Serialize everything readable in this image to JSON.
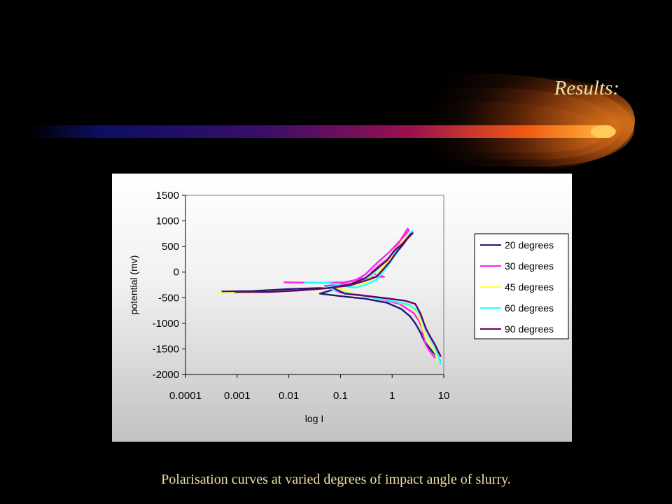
{
  "slide": {
    "title": "Results:",
    "caption": "Polarisation curves  at varied degrees of impact angle of slurry."
  },
  "chart_data": {
    "type": "line",
    "title": "",
    "xlabel": "log I",
    "ylabel": "potential (mv)",
    "x_scale": "log",
    "xlim": [
      0.0001,
      10
    ],
    "ylim": [
      -2000,
      1500
    ],
    "x_ticks": [
      "0.0001",
      "0.001",
      "0.01",
      "0.1",
      "1",
      "10"
    ],
    "y_ticks": [
      "1500",
      "1000",
      "500",
      "0",
      "-500",
      "-1000",
      "-1500",
      "-2000"
    ],
    "grid": false,
    "legend": "right",
    "series": [
      {
        "name": "20 degrees",
        "color": "#1a1a7a",
        "points": [
          [
            0.0005,
            -380
          ],
          [
            0.002,
            -370
          ],
          [
            0.01,
            -330
          ],
          [
            0.04,
            -310
          ],
          [
            0.08,
            -330
          ],
          [
            0.04,
            -420
          ],
          [
            0.1,
            -470
          ],
          [
            0.3,
            -520
          ],
          [
            0.8,
            -600
          ],
          [
            1.5,
            -720
          ],
          [
            2.2,
            -860
          ],
          [
            2.8,
            -1000
          ],
          [
            3.2,
            -1100
          ],
          [
            3.6,
            -1200
          ],
          [
            4.2,
            -1350
          ],
          [
            5.0,
            -1450
          ],
          [
            6.0,
            -1550
          ],
          [
            7.5,
            -1650
          ],
          [
            8.6,
            -1740
          ]
        ]
      },
      {
        "name": "30 degrees",
        "color": "#ff22ee",
        "points": [
          [
            0.008,
            -200
          ],
          [
            0.04,
            -210
          ],
          [
            0.12,
            -200
          ],
          [
            0.25,
            -130
          ],
          [
            0.4,
            -100
          ],
          [
            0.7,
            -90
          ],
          [
            0.5,
            -60
          ],
          [
            0.4,
            0
          ],
          [
            0.6,
            150
          ],
          [
            0.9,
            300
          ],
          [
            1.2,
            480
          ],
          [
            1.5,
            650
          ],
          [
            2.0,
            850
          ],
          [
            2.1,
            810
          ],
          [
            1.5,
            640
          ],
          [
            0.9,
            400
          ],
          [
            0.5,
            170
          ],
          [
            0.3,
            -50
          ],
          [
            0.2,
            -150
          ],
          [
            0.1,
            -240
          ],
          [
            0.05,
            -270
          ],
          [
            0.1,
            -400
          ],
          [
            0.25,
            -450
          ],
          [
            0.6,
            -530
          ],
          [
            1.4,
            -620
          ],
          [
            2.6,
            -800
          ],
          [
            3.3,
            -950
          ],
          [
            3.8,
            -1100
          ],
          [
            4.0,
            -1250
          ],
          [
            4.5,
            -1420
          ],
          [
            5.5,
            -1560
          ],
          [
            6.8,
            -1680
          ]
        ]
      },
      {
        "name": "45 degrees",
        "color": "#ffff44",
        "points": [
          [
            0.0004,
            -410
          ],
          [
            0.002,
            -400
          ],
          [
            0.01,
            -370
          ],
          [
            0.05,
            -330
          ],
          [
            0.15,
            -290
          ],
          [
            0.3,
            -200
          ],
          [
            0.5,
            -100
          ],
          [
            0.6,
            50
          ],
          [
            0.9,
            250
          ],
          [
            1.2,
            420
          ],
          [
            1.6,
            580
          ],
          [
            2.0,
            700
          ],
          [
            2.3,
            760
          ],
          [
            2.0,
            740
          ],
          [
            1.4,
            540
          ],
          [
            1.0,
            380
          ],
          [
            0.8,
            200
          ],
          [
            0.6,
            100
          ],
          [
            0.4,
            -80
          ],
          [
            0.2,
            -240
          ],
          [
            0.1,
            -320
          ],
          [
            0.2,
            -440
          ],
          [
            0.5,
            -510
          ],
          [
            1.2,
            -580
          ],
          [
            2.2,
            -660
          ],
          [
            3.0,
            -800
          ],
          [
            3.6,
            -980
          ],
          [
            4.0,
            -1150
          ],
          [
            4.8,
            -1320
          ],
          [
            5.8,
            -1450
          ],
          [
            7.0,
            -1600
          ],
          [
            8.0,
            -1720
          ]
        ]
      },
      {
        "name": "60 degrees",
        "color": "#22ffff",
        "points": [
          [
            0.02,
            -210
          ],
          [
            0.06,
            -210
          ],
          [
            0.1,
            -260
          ],
          [
            0.15,
            -290
          ],
          [
            0.2,
            -300
          ],
          [
            0.3,
            -250
          ],
          [
            0.5,
            -150
          ],
          [
            0.6,
            -50
          ],
          [
            0.8,
            100
          ],
          [
            1.0,
            250
          ],
          [
            1.4,
            450
          ],
          [
            1.7,
            560
          ],
          [
            2.2,
            740
          ],
          [
            2.5,
            800
          ],
          [
            2.3,
            780
          ],
          [
            1.8,
            620
          ],
          [
            1.3,
            460
          ],
          [
            0.9,
            300
          ],
          [
            0.6,
            120
          ],
          [
            0.4,
            -60
          ],
          [
            0.25,
            -180
          ],
          [
            0.1,
            -280
          ],
          [
            0.05,
            -300
          ],
          [
            0.15,
            -420
          ],
          [
            0.4,
            -490
          ],
          [
            1.0,
            -560
          ],
          [
            2.2,
            -640
          ],
          [
            3.2,
            -780
          ],
          [
            3.9,
            -950
          ],
          [
            4.4,
            -1120
          ],
          [
            5.5,
            -1300
          ],
          [
            6.8,
            -1480
          ],
          [
            7.8,
            -1620
          ],
          [
            8.7,
            -1800
          ]
        ]
      },
      {
        "name": "90 degrees",
        "color": "#660066",
        "points": [
          [
            0.0009,
            -390
          ],
          [
            0.004,
            -390
          ],
          [
            0.015,
            -360
          ],
          [
            0.05,
            -320
          ],
          [
            0.15,
            -260
          ],
          [
            0.3,
            -170
          ],
          [
            0.5,
            -90
          ],
          [
            0.6,
            0
          ],
          [
            0.9,
            200
          ],
          [
            1.2,
            380
          ],
          [
            1.6,
            530
          ],
          [
            2.0,
            660
          ],
          [
            2.5,
            760
          ],
          [
            2.3,
            740
          ],
          [
            1.6,
            560
          ],
          [
            1.1,
            420
          ],
          [
            0.8,
            230
          ],
          [
            0.5,
            60
          ],
          [
            0.3,
            -120
          ],
          [
            0.15,
            -240
          ],
          [
            0.07,
            -300
          ],
          [
            0.12,
            -420
          ],
          [
            0.35,
            -470
          ],
          [
            0.9,
            -520
          ],
          [
            1.8,
            -560
          ],
          [
            2.8,
            -620
          ],
          [
            3.5,
            -800
          ],
          [
            4.0,
            -960
          ],
          [
            4.6,
            -1120
          ],
          [
            5.6,
            -1280
          ],
          [
            6.8,
            -1420
          ],
          [
            7.8,
            -1550
          ],
          [
            8.8,
            -1650
          ]
        ]
      }
    ]
  }
}
